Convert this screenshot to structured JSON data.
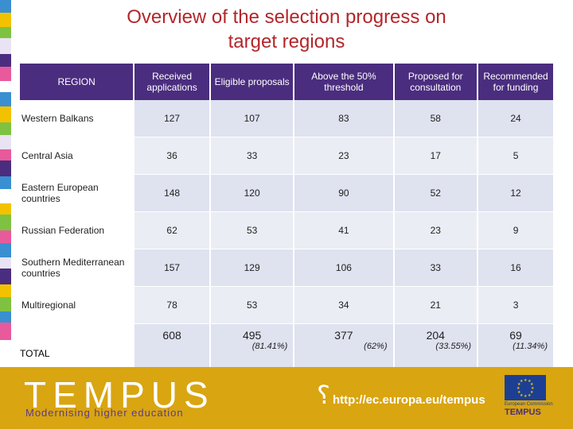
{
  "title": {
    "line1": "Overview of the selection progress on",
    "line2": "target regions"
  },
  "table": {
    "headers": [
      "REGION",
      "Received applications",
      "Eligible proposals",
      "Above the 50% threshold",
      "Proposed for consultation",
      "Recommended for funding"
    ],
    "rows": [
      {
        "region": "Western Balkans",
        "values": [
          "127",
          "107",
          "83",
          "58",
          "24"
        ]
      },
      {
        "region": "Central Asia",
        "values": [
          "36",
          "33",
          "23",
          "17",
          "5"
        ]
      },
      {
        "region": "Eastern European countries",
        "values": [
          "148",
          "120",
          "90",
          "52",
          "12"
        ]
      },
      {
        "region": "Russian Federation",
        "values": [
          "62",
          "53",
          "41",
          "23",
          "9"
        ]
      },
      {
        "region": "Southern Mediterranean countries",
        "values": [
          "157",
          "129",
          "106",
          "33",
          "16"
        ]
      },
      {
        "region": "Multiregional",
        "values": [
          "78",
          "53",
          "34",
          "21",
          "3"
        ]
      }
    ],
    "total": {
      "label": "TOTAL",
      "values": [
        "608",
        "495",
        "377",
        "204",
        "69"
      ],
      "percentages": [
        "",
        "(81.41%)",
        "(62%)",
        "(33.55%)",
        "(11.34%)"
      ]
    }
  },
  "footer": {
    "logo": "TEMPUS",
    "tagline": "Modernising higher education",
    "url": "http://ec.europa.eu/tempus",
    "eu_label": "European Commission",
    "eu_program": "TEMPUS"
  },
  "colors": {
    "title": "#b3262b",
    "header_bg": "#4b2d7f",
    "row_shade": "#dfe2ef",
    "footer_bg": "#d9a511",
    "eu_blue": "#1c3f94"
  }
}
